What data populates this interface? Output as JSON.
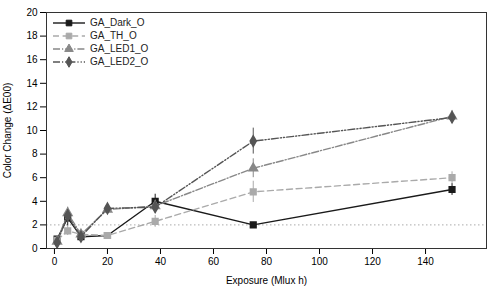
{
  "chart_data": {
    "type": "line",
    "xlabel": "Exposure (Mlux h)",
    "ylabel": "Color Change (ΔE00)",
    "xlim": [
      -3,
      163
    ],
    "ylim": [
      0,
      20
    ],
    "xticks": [
      0,
      20,
      40,
      60,
      80,
      100,
      120,
      140
    ],
    "yticks": [
      0,
      2,
      4,
      6,
      8,
      10,
      12,
      14,
      16,
      18,
      20
    ],
    "grid": false,
    "legend": "upper left",
    "hline_y": 2.0,
    "x": [
      1,
      5,
      10,
      20,
      38,
      75,
      150
    ],
    "series": [
      {
        "name": "GA_Dark_O",
        "color": "#1a1a1a",
        "marker": "square",
        "line_style": "solid",
        "values": [
          0.8,
          2.6,
          1.0,
          1.1,
          4.0,
          2.0,
          5.0
        ],
        "yerr": [
          0.2,
          0.7,
          0.3,
          0.2,
          0.6,
          0.2,
          0.5
        ]
      },
      {
        "name": "GA_TH_O",
        "color": "#aaaaaa",
        "marker": "square",
        "line_style": "dashed",
        "values": [
          0.7,
          1.5,
          1.2,
          1.1,
          2.3,
          4.8,
          6.0
        ],
        "yerr": [
          0.2,
          0.4,
          0.4,
          0.2,
          0.5,
          0.9,
          0.5
        ]
      },
      {
        "name": "GA_LED1_O",
        "color": "#888888",
        "marker": "triangle",
        "line_style": "dashdot",
        "values": [
          0.6,
          3.0,
          1.2,
          3.3,
          3.6,
          6.8,
          11.2
        ],
        "yerr": [
          0.2,
          0.5,
          0.3,
          0.3,
          0.5,
          0.8,
          0.5
        ]
      },
      {
        "name": "GA_LED2_O",
        "color": "#555555",
        "marker": "diamond",
        "line_style": "dashdotdot",
        "values": [
          0.5,
          2.8,
          1.0,
          3.4,
          3.5,
          9.1,
          11.1
        ],
        "yerr": [
          0.2,
          0.5,
          0.3,
          0.3,
          0.5,
          1.1,
          0.5
        ]
      }
    ]
  }
}
